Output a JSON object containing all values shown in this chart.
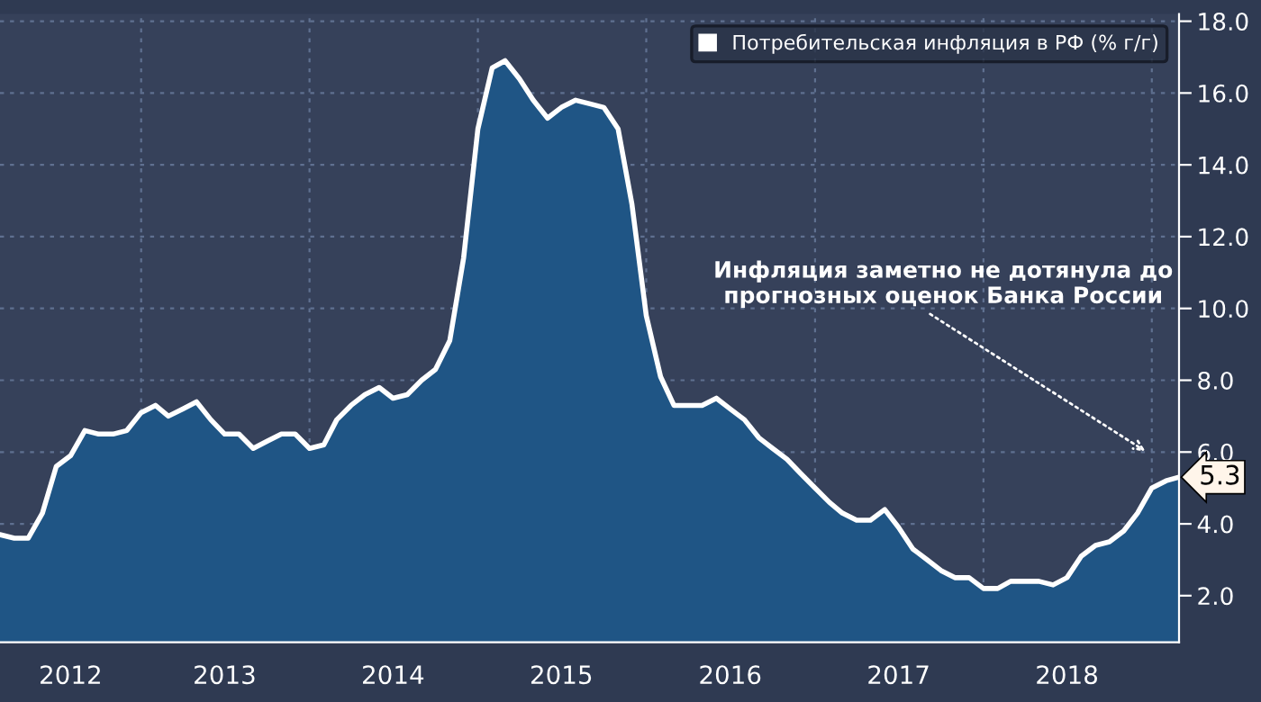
{
  "chart_data": {
    "type": "area",
    "x": [
      "2012-03",
      "2012-04",
      "2012-05",
      "2012-06",
      "2012-07",
      "2012-08",
      "2012-09",
      "2012-10",
      "2012-11",
      "2012-12",
      "2013-01",
      "2013-02",
      "2013-03",
      "2013-04",
      "2013-05",
      "2013-06",
      "2013-07",
      "2013-08",
      "2013-09",
      "2013-10",
      "2013-11",
      "2013-12",
      "2014-01",
      "2014-02",
      "2014-03",
      "2014-04",
      "2014-05",
      "2014-06",
      "2014-07",
      "2014-08",
      "2014-09",
      "2014-10",
      "2014-11",
      "2014-12",
      "2015-01",
      "2015-02",
      "2015-03",
      "2015-04",
      "2015-05",
      "2015-06",
      "2015-07",
      "2015-08",
      "2015-09",
      "2015-10",
      "2015-11",
      "2015-12",
      "2016-01",
      "2016-02",
      "2016-03",
      "2016-04",
      "2016-05",
      "2016-06",
      "2016-07",
      "2016-08",
      "2016-09",
      "2016-10",
      "2016-11",
      "2016-12",
      "2017-01",
      "2017-02",
      "2017-03",
      "2017-04",
      "2017-05",
      "2017-06",
      "2017-07",
      "2017-08",
      "2017-09",
      "2017-10",
      "2017-11",
      "2017-12",
      "2018-01",
      "2018-02",
      "2018-03",
      "2018-04",
      "2018-05",
      "2018-06",
      "2018-07",
      "2018-08",
      "2018-09",
      "2018-10",
      "2018-11",
      "2018-12",
      "2019-01",
      "2019-02",
      "2019-03"
    ],
    "series": [
      {
        "name": "Потребительская инфляция в РФ (% г/г)",
        "color": "#ffffff",
        "values": [
          3.7,
          3.6,
          3.6,
          4.3,
          5.6,
          5.9,
          6.6,
          6.5,
          6.5,
          6.6,
          7.1,
          7.3,
          7.0,
          7.2,
          7.4,
          6.9,
          6.5,
          6.5,
          6.1,
          6.3,
          6.5,
          6.5,
          6.1,
          6.2,
          6.9,
          7.3,
          7.6,
          7.8,
          7.5,
          7.6,
          8.0,
          8.3,
          9.1,
          11.4,
          15.0,
          16.7,
          16.9,
          16.4,
          15.8,
          15.3,
          15.6,
          15.8,
          15.7,
          15.6,
          15.0,
          12.9,
          9.8,
          8.1,
          7.3,
          7.3,
          7.3,
          7.5,
          7.2,
          6.9,
          6.4,
          6.1,
          5.8,
          5.4,
          5.0,
          4.6,
          4.3,
          4.1,
          4.1,
          4.4,
          3.9,
          3.3,
          3.0,
          2.7,
          2.5,
          2.5,
          2.2,
          2.2,
          2.4,
          2.4,
          2.4,
          2.3,
          2.5,
          3.1,
          3.4,
          3.5,
          3.8,
          4.3,
          5.0,
          5.2,
          5.3
        ]
      }
    ],
    "xlim": [
      "2012-03",
      "2019-03"
    ],
    "xticks": [
      {
        "value": "2013-01",
        "label": null
      },
      {
        "value": "2014-01",
        "label": null
      },
      {
        "value": "2015-01",
        "label": null
      },
      {
        "value": "2016-01",
        "label": null
      },
      {
        "value": "2017-01",
        "label": null
      },
      {
        "value": "2018-01",
        "label": null
      },
      {
        "value": "2019-01",
        "label": null
      },
      {
        "value": "2012-08",
        "label": "2012"
      },
      {
        "value": "2013-07",
        "label": "2013"
      },
      {
        "value": "2014-07",
        "label": "2014"
      },
      {
        "value": "2015-07",
        "label": "2015"
      },
      {
        "value": "2016-07",
        "label": "2016"
      },
      {
        "value": "2017-07",
        "label": "2017"
      },
      {
        "value": "2018-07",
        "label": "2018"
      }
    ],
    "ylim": [
      0.7,
      18.2
    ],
    "yticks": [
      {
        "value": 2,
        "label": "2.0"
      },
      {
        "value": 4,
        "label": "4.0"
      },
      {
        "value": 6,
        "label": "6.0"
      },
      {
        "value": 8,
        "label": "8.0"
      },
      {
        "value": 10,
        "label": "10.0"
      },
      {
        "value": 12,
        "label": "12.0"
      },
      {
        "value": 14,
        "label": "14.0"
      },
      {
        "value": 16,
        "label": "16.0"
      },
      {
        "value": 18,
        "label": "18.0"
      }
    ],
    "grid": true,
    "legend": "top right",
    "annotations": [
      {
        "text": "5.3",
        "x": "2019-03",
        "y": 5.3
      },
      "Инфляция заметно не дотянула до\nпрогнозных оценок Банка России"
    ]
  }
}
